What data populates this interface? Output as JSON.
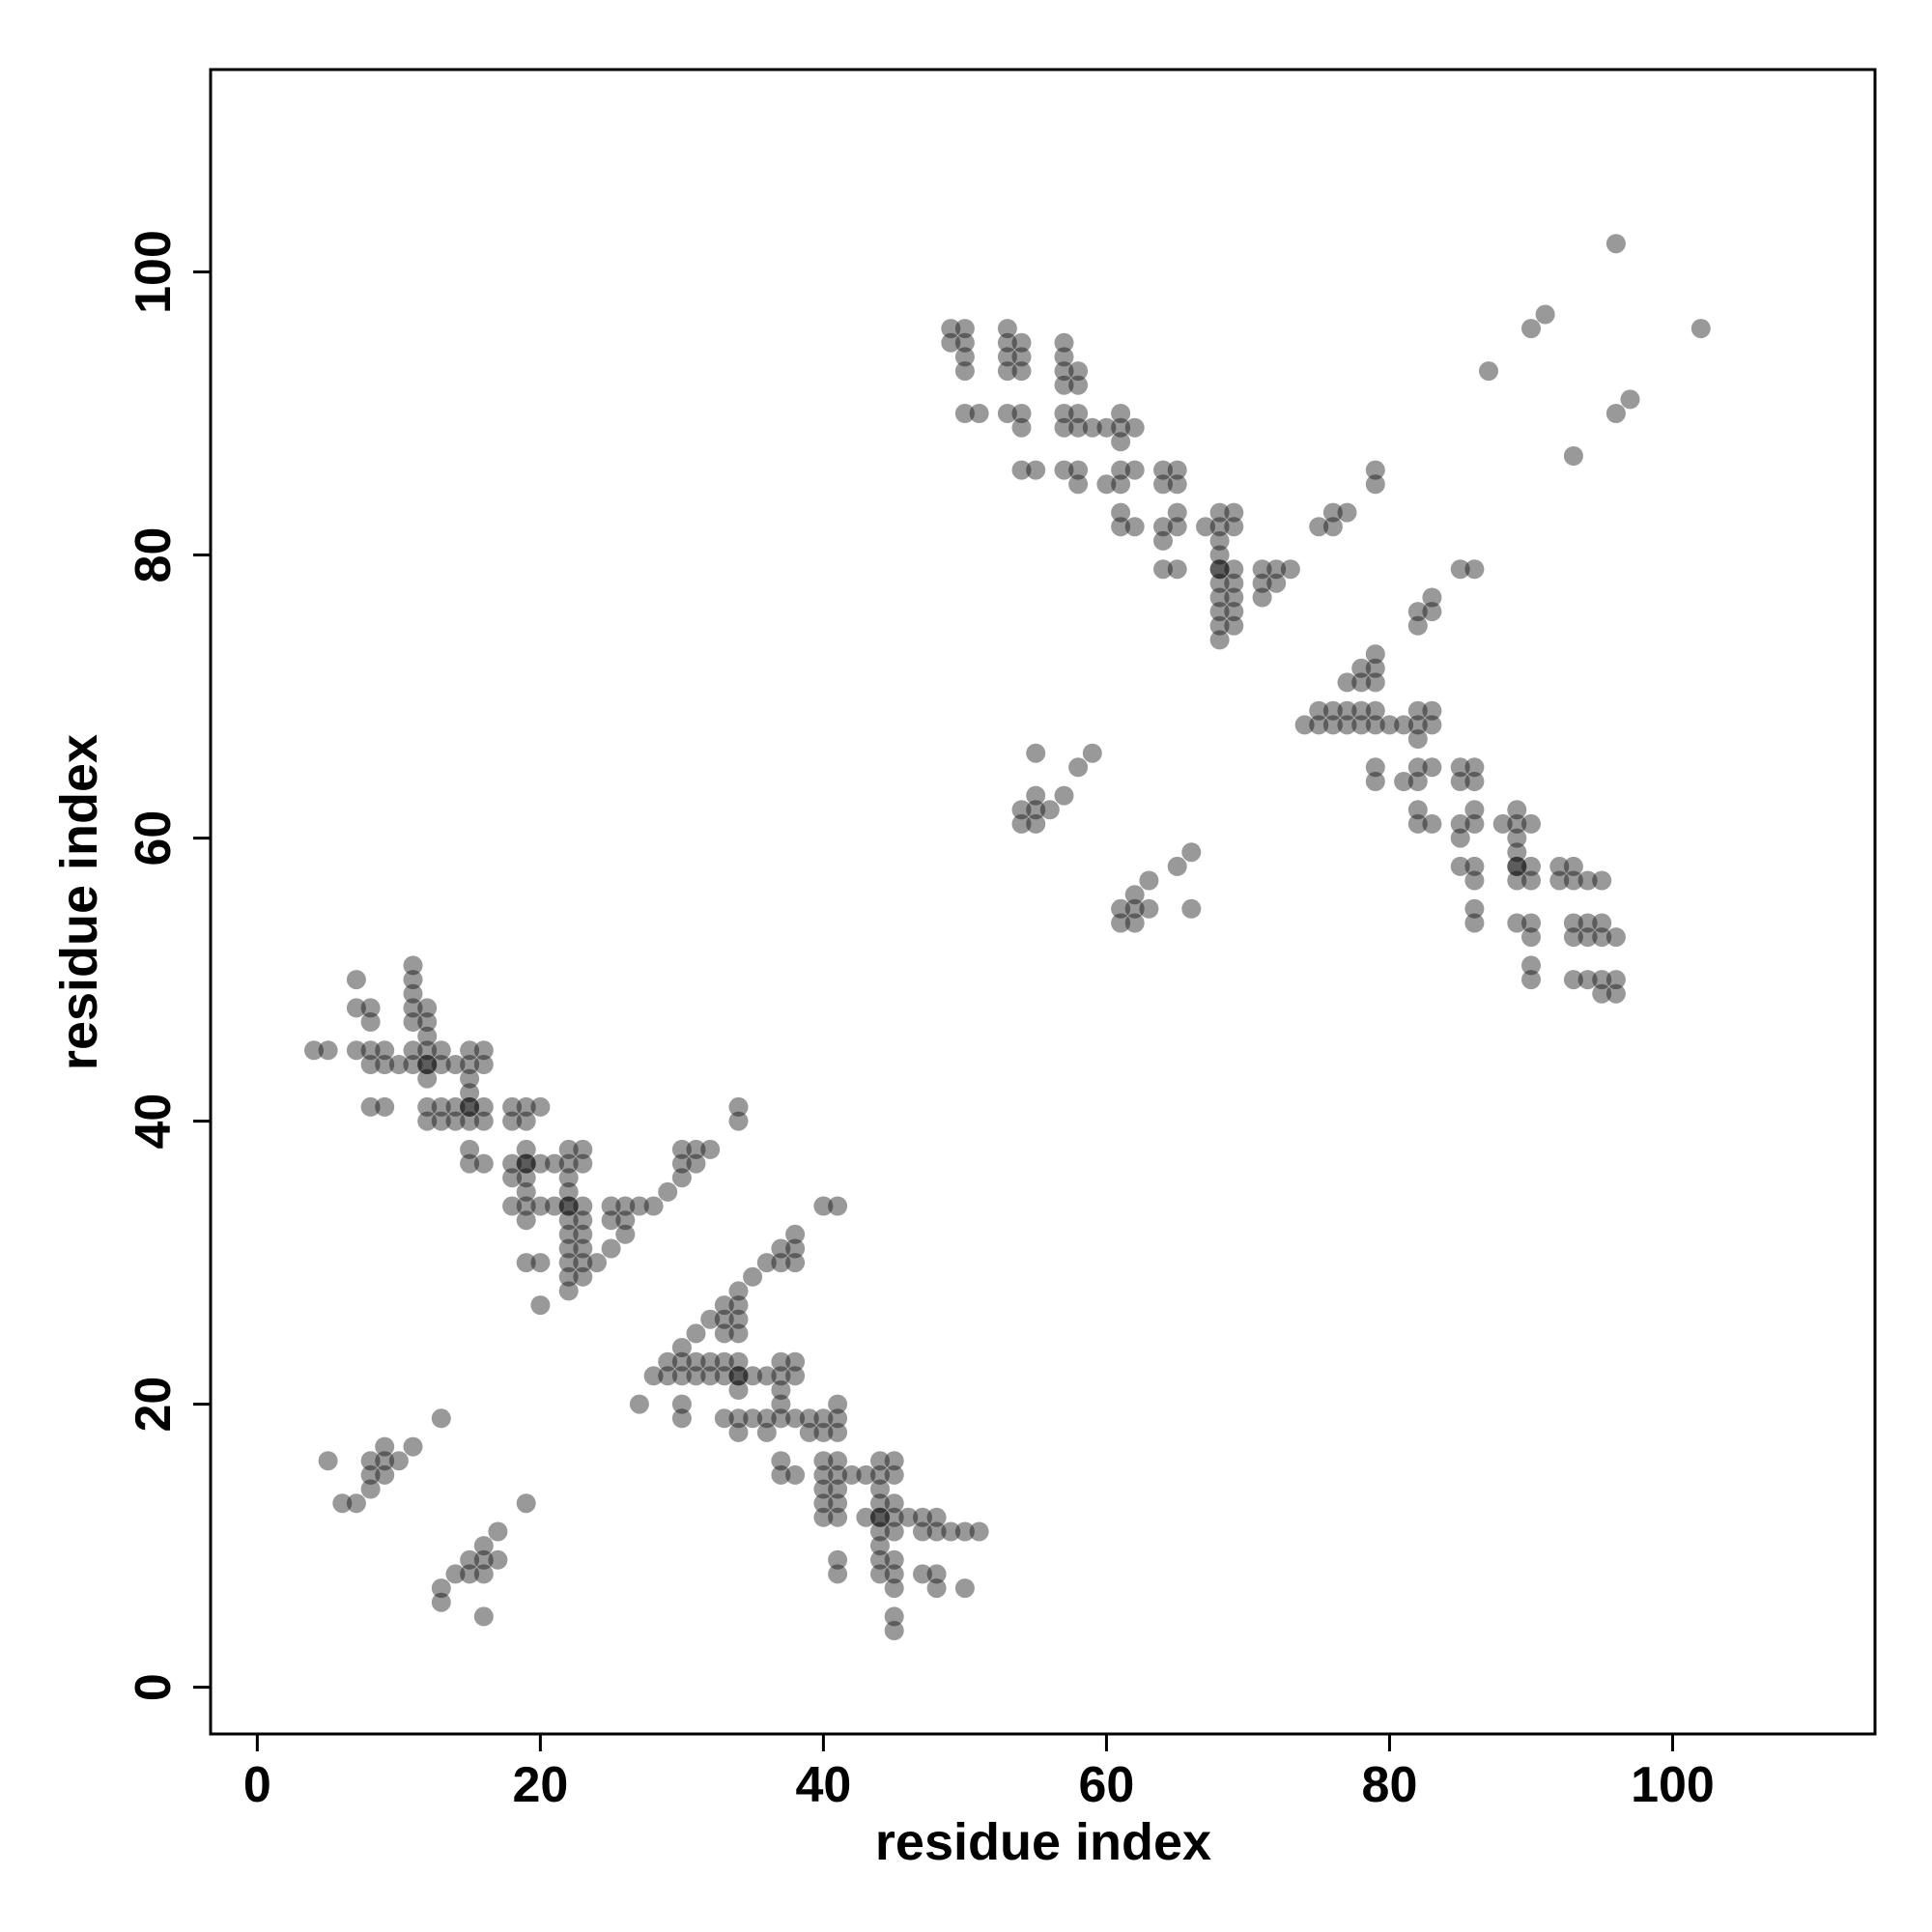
{
  "chart_data": {
    "type": "scatter",
    "title": "",
    "xlabel": "residue index",
    "ylabel": "residue index",
    "xlim": [
      -3.3,
      114.3
    ],
    "ylim": [
      -3.3,
      114.3
    ],
    "x_ticks": [
      0,
      20,
      40,
      60,
      80,
      100
    ],
    "y_ticks": [
      0,
      20,
      40,
      60,
      80,
      100
    ],
    "x_tick_labels": [
      "0",
      "20",
      "40",
      "60",
      "80",
      "100"
    ],
    "y_tick_labels": [
      "0",
      "20",
      "40",
      "60",
      "80",
      "100"
    ],
    "grid": false,
    "legend": "none",
    "point_color": "#000000",
    "point_opacity": 0.4,
    "points": [
      [
        4,
        45
      ],
      [
        5,
        45
      ],
      [
        7,
        50
      ],
      [
        7,
        48
      ],
      [
        7,
        45
      ],
      [
        8,
        48
      ],
      [
        8,
        47
      ],
      [
        8,
        45
      ],
      [
        8,
        44
      ],
      [
        9,
        45
      ],
      [
        9,
        44
      ],
      [
        10,
        44
      ],
      [
        11,
        51
      ],
      [
        11,
        50
      ],
      [
        11,
        49
      ],
      [
        11,
        48
      ],
      [
        11,
        47
      ],
      [
        11,
        45
      ],
      [
        11,
        44
      ],
      [
        12,
        48
      ],
      [
        12,
        47
      ],
      [
        12,
        46
      ],
      [
        12,
        45
      ],
      [
        12,
        44
      ],
      [
        12,
        44
      ],
      [
        12,
        43
      ],
      [
        13,
        45
      ],
      [
        13,
        44
      ],
      [
        14,
        44
      ],
      [
        15,
        45
      ],
      [
        15,
        44
      ],
      [
        15,
        43
      ],
      [
        15,
        42
      ],
      [
        15,
        41
      ],
      [
        15,
        40
      ],
      [
        16,
        45
      ],
      [
        16,
        44
      ],
      [
        8,
        41
      ],
      [
        9,
        41
      ],
      [
        12,
        41
      ],
      [
        12,
        40
      ],
      [
        13,
        41
      ],
      [
        13,
        40
      ],
      [
        14,
        41
      ],
      [
        14,
        40
      ],
      [
        15,
        41
      ],
      [
        16,
        41
      ],
      [
        16,
        40
      ],
      [
        15,
        38
      ],
      [
        15,
        37
      ],
      [
        16,
        37
      ],
      [
        18,
        41
      ],
      [
        18,
        40
      ],
      [
        19,
        41
      ],
      [
        19,
        40
      ],
      [
        20,
        41
      ],
      [
        18,
        37
      ],
      [
        18,
        36
      ],
      [
        19,
        38
      ],
      [
        19,
        37
      ],
      [
        19,
        37
      ],
      [
        19,
        36
      ],
      [
        19,
        35
      ],
      [
        20,
        37
      ],
      [
        21,
        37
      ],
      [
        22,
        38
      ],
      [
        22,
        37
      ],
      [
        22,
        36
      ],
      [
        23,
        38
      ],
      [
        23,
        37
      ],
      [
        18,
        34
      ],
      [
        19,
        34
      ],
      [
        19,
        33
      ],
      [
        20,
        34
      ],
      [
        21,
        34
      ],
      [
        22,
        35
      ],
      [
        22,
        34
      ],
      [
        22,
        34
      ],
      [
        22,
        33
      ],
      [
        22,
        32
      ],
      [
        22,
        31
      ],
      [
        22,
        30
      ],
      [
        22,
        29
      ],
      [
        22,
        28
      ],
      [
        23,
        34
      ],
      [
        23,
        33
      ],
      [
        23,
        32
      ],
      [
        23,
        31
      ],
      [
        23,
        30
      ],
      [
        23,
        29
      ],
      [
        24,
        30
      ],
      [
        25,
        34
      ],
      [
        25,
        33
      ],
      [
        26,
        34
      ],
      [
        26,
        33
      ],
      [
        26,
        32
      ],
      [
        27,
        34
      ],
      [
        28,
        34
      ],
      [
        25,
        31
      ],
      [
        19,
        30
      ],
      [
        20,
        30
      ],
      [
        20,
        27
      ],
      [
        29,
        35
      ],
      [
        30,
        38
      ],
      [
        30,
        37
      ],
      [
        30,
        36
      ],
      [
        31,
        38
      ],
      [
        31,
        37
      ],
      [
        32,
        38
      ],
      [
        34,
        41
      ],
      [
        34,
        40
      ],
      [
        36,
        30
      ],
      [
        37,
        31
      ],
      [
        37,
        30
      ],
      [
        38,
        32
      ],
      [
        38,
        31
      ],
      [
        38,
        30
      ],
      [
        40,
        34
      ],
      [
        41,
        34
      ],
      [
        31,
        25
      ],
      [
        32,
        26
      ],
      [
        33,
        27
      ],
      [
        33,
        26
      ],
      [
        33,
        25
      ],
      [
        34,
        28
      ],
      [
        34,
        27
      ],
      [
        34,
        26
      ],
      [
        34,
        25
      ],
      [
        35,
        29
      ],
      [
        27,
        20
      ],
      [
        28,
        22
      ],
      [
        29,
        23
      ],
      [
        29,
        22
      ],
      [
        30,
        24
      ],
      [
        30,
        23
      ],
      [
        30,
        22
      ],
      [
        30,
        20
      ],
      [
        30,
        19
      ],
      [
        31,
        23
      ],
      [
        31,
        22
      ],
      [
        32,
        23
      ],
      [
        32,
        22
      ],
      [
        33,
        23
      ],
      [
        33,
        22
      ],
      [
        34,
        23
      ],
      [
        34,
        22
      ],
      [
        34,
        22
      ],
      [
        34,
        21
      ],
      [
        35,
        22
      ],
      [
        36,
        22
      ],
      [
        37,
        23
      ],
      [
        37,
        22
      ],
      [
        37,
        21
      ],
      [
        37,
        20
      ],
      [
        37,
        19
      ],
      [
        38,
        23
      ],
      [
        38,
        22
      ],
      [
        33,
        19
      ],
      [
        34,
        19
      ],
      [
        34,
        18
      ],
      [
        35,
        19
      ],
      [
        36,
        19
      ],
      [
        36,
        18
      ],
      [
        38,
        19
      ],
      [
        37,
        16
      ],
      [
        37,
        15
      ],
      [
        38,
        15
      ],
      [
        39,
        19
      ],
      [
        39,
        18
      ],
      [
        40,
        19
      ],
      [
        40,
        18
      ],
      [
        41,
        20
      ],
      [
        41,
        19
      ],
      [
        41,
        18
      ],
      [
        40,
        16
      ],
      [
        40,
        15
      ],
      [
        40,
        14
      ],
      [
        40,
        13
      ],
      [
        40,
        12
      ],
      [
        41,
        16
      ],
      [
        41,
        15
      ],
      [
        41,
        14
      ],
      [
        41,
        13
      ],
      [
        41,
        12
      ],
      [
        42,
        15
      ],
      [
        43,
        15
      ],
      [
        43,
        12
      ],
      [
        44,
        16
      ],
      [
        44,
        15
      ],
      [
        44,
        14
      ],
      [
        44,
        13
      ],
      [
        44,
        12
      ],
      [
        44,
        12
      ],
      [
        44,
        11
      ],
      [
        44,
        10
      ],
      [
        44,
        9
      ],
      [
        44,
        8
      ],
      [
        45,
        16
      ],
      [
        45,
        15
      ],
      [
        45,
        13
      ],
      [
        45,
        12
      ],
      [
        45,
        11
      ],
      [
        45,
        9
      ],
      [
        45,
        8
      ],
      [
        45,
        7
      ],
      [
        45,
        5
      ],
      [
        45,
        4
      ],
      [
        41,
        9
      ],
      [
        41,
        8
      ],
      [
        46,
        12
      ],
      [
        47,
        12
      ],
      [
        47,
        11
      ],
      [
        47,
        8
      ],
      [
        48,
        12
      ],
      [
        48,
        11
      ],
      [
        48,
        8
      ],
      [
        48,
        7
      ],
      [
        49,
        11
      ],
      [
        50,
        11
      ],
      [
        51,
        11
      ],
      [
        50,
        7
      ],
      [
        5,
        16
      ],
      [
        6,
        13
      ],
      [
        7,
        13
      ],
      [
        8,
        16
      ],
      [
        8,
        15
      ],
      [
        8,
        14
      ],
      [
        9,
        17
      ],
      [
        9,
        16
      ],
      [
        9,
        15
      ],
      [
        10,
        16
      ],
      [
        11,
        17
      ],
      [
        13,
        19
      ],
      [
        13,
        7
      ],
      [
        13,
        6
      ],
      [
        14,
        8
      ],
      [
        15,
        9
      ],
      [
        15,
        8
      ],
      [
        16,
        10
      ],
      [
        16,
        9
      ],
      [
        16,
        8
      ],
      [
        16,
        5
      ],
      [
        17,
        11
      ],
      [
        17,
        9
      ],
      [
        19,
        13
      ],
      [
        49,
        96
      ],
      [
        49,
        95
      ],
      [
        50,
        96
      ],
      [
        50,
        95
      ],
      [
        50,
        94
      ],
      [
        50,
        93
      ],
      [
        50,
        90
      ],
      [
        51,
        90
      ],
      [
        53,
        96
      ],
      [
        53,
        95
      ],
      [
        53,
        94
      ],
      [
        53,
        93
      ],
      [
        53,
        90
      ],
      [
        54,
        95
      ],
      [
        54,
        94
      ],
      [
        54,
        93
      ],
      [
        54,
        90
      ],
      [
        54,
        89
      ],
      [
        54,
        86
      ],
      [
        55,
        86
      ],
      [
        57,
        95
      ],
      [
        57,
        94
      ],
      [
        57,
        93
      ],
      [
        57,
        92
      ],
      [
        57,
        90
      ],
      [
        57,
        89
      ],
      [
        57,
        86
      ],
      [
        58,
        93
      ],
      [
        58,
        92
      ],
      [
        58,
        90
      ],
      [
        58,
        89
      ],
      [
        58,
        86
      ],
      [
        58,
        85
      ],
      [
        59,
        89
      ],
      [
        60,
        89
      ],
      [
        60,
        85
      ],
      [
        61,
        90
      ],
      [
        61,
        89
      ],
      [
        61,
        88
      ],
      [
        61,
        86
      ],
      [
        61,
        85
      ],
      [
        61,
        83
      ],
      [
        61,
        82
      ],
      [
        62,
        89
      ],
      [
        62,
        86
      ],
      [
        62,
        82
      ],
      [
        64,
        86
      ],
      [
        64,
        85
      ],
      [
        64,
        82
      ],
      [
        64,
        81
      ],
      [
        64,
        79
      ],
      [
        65,
        86
      ],
      [
        65,
        85
      ],
      [
        65,
        83
      ],
      [
        65,
        82
      ],
      [
        65,
        79
      ],
      [
        67,
        82
      ],
      [
        68,
        83
      ],
      [
        68,
        82
      ],
      [
        68,
        81
      ],
      [
        68,
        80
      ],
      [
        68,
        79
      ],
      [
        68,
        79
      ],
      [
        68,
        78
      ],
      [
        68,
        77
      ],
      [
        68,
        76
      ],
      [
        68,
        75
      ],
      [
        68,
        74
      ],
      [
        69,
        83
      ],
      [
        69,
        82
      ],
      [
        69,
        79
      ],
      [
        69,
        78
      ],
      [
        69,
        77
      ],
      [
        69,
        76
      ],
      [
        69,
        75
      ],
      [
        71,
        79
      ],
      [
        71,
        78
      ],
      [
        71,
        77
      ],
      [
        72,
        79
      ],
      [
        72,
        78
      ],
      [
        73,
        79
      ],
      [
        75,
        82
      ],
      [
        76,
        83
      ],
      [
        76,
        82
      ],
      [
        77,
        83
      ],
      [
        79,
        86
      ],
      [
        79,
        85
      ],
      [
        74,
        68
      ],
      [
        75,
        69
      ],
      [
        75,
        68
      ],
      [
        76,
        69
      ],
      [
        76,
        68
      ],
      [
        77,
        71
      ],
      [
        77,
        69
      ],
      [
        77,
        68
      ],
      [
        78,
        72
      ],
      [
        78,
        71
      ],
      [
        78,
        69
      ],
      [
        78,
        68
      ],
      [
        79,
        73
      ],
      [
        79,
        72
      ],
      [
        79,
        71
      ],
      [
        79,
        69
      ],
      [
        79,
        68
      ],
      [
        79,
        65
      ],
      [
        79,
        64
      ],
      [
        80,
        68
      ],
      [
        81,
        68
      ],
      [
        81,
        64
      ],
      [
        82,
        76
      ],
      [
        82,
        75
      ],
      [
        82,
        69
      ],
      [
        82,
        68
      ],
      [
        82,
        67
      ],
      [
        82,
        65
      ],
      [
        82,
        64
      ],
      [
        82,
        62
      ],
      [
        82,
        61
      ],
      [
        83,
        77
      ],
      [
        83,
        76
      ],
      [
        83,
        69
      ],
      [
        83,
        68
      ],
      [
        83,
        65
      ],
      [
        83,
        61
      ],
      [
        85,
        79
      ],
      [
        86,
        79
      ],
      [
        85,
        65
      ],
      [
        85,
        64
      ],
      [
        85,
        61
      ],
      [
        85,
        60
      ],
      [
        85,
        58
      ],
      [
        86,
        65
      ],
      [
        86,
        64
      ],
      [
        86,
        62
      ],
      [
        86,
        61
      ],
      [
        86,
        58
      ],
      [
        86,
        57
      ],
      [
        86,
        55
      ],
      [
        86,
        54
      ],
      [
        88,
        61
      ],
      [
        89,
        62
      ],
      [
        89,
        61
      ],
      [
        89,
        60
      ],
      [
        89,
        59
      ],
      [
        89,
        58
      ],
      [
        89,
        58
      ],
      [
        89,
        57
      ],
      [
        89,
        54
      ],
      [
        90,
        61
      ],
      [
        90,
        58
      ],
      [
        90,
        57
      ],
      [
        90,
        54
      ],
      [
        90,
        53
      ],
      [
        90,
        51
      ],
      [
        90,
        50
      ],
      [
        92,
        58
      ],
      [
        92,
        57
      ],
      [
        93,
        58
      ],
      [
        93,
        57
      ],
      [
        93,
        54
      ],
      [
        93,
        53
      ],
      [
        93,
        50
      ],
      [
        94,
        57
      ],
      [
        94,
        54
      ],
      [
        94,
        53
      ],
      [
        94,
        50
      ],
      [
        95,
        57
      ],
      [
        95,
        54
      ],
      [
        95,
        53
      ],
      [
        95,
        50
      ],
      [
        95,
        49
      ],
      [
        96,
        53
      ],
      [
        96,
        50
      ],
      [
        96,
        49
      ],
      [
        54,
        62
      ],
      [
        54,
        61
      ],
      [
        55,
        66
      ],
      [
        55,
        63
      ],
      [
        55,
        62
      ],
      [
        55,
        61
      ],
      [
        56,
        62
      ],
      [
        57,
        63
      ],
      [
        58,
        65
      ],
      [
        59,
        66
      ],
      [
        61,
        55
      ],
      [
        61,
        54
      ],
      [
        62,
        56
      ],
      [
        62,
        55
      ],
      [
        62,
        54
      ],
      [
        63,
        57
      ],
      [
        63,
        55
      ],
      [
        65,
        58
      ],
      [
        66,
        59
      ],
      [
        66,
        55
      ],
      [
        87,
        93
      ],
      [
        90,
        96
      ],
      [
        91,
        97
      ],
      [
        93,
        87
      ],
      [
        96,
        102
      ],
      [
        96,
        90
      ],
      [
        97,
        91
      ],
      [
        102,
        96
      ]
    ]
  }
}
